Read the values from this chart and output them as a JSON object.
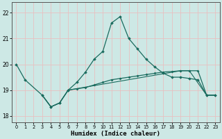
{
  "xlabel": "Humidex (Indice chaleur)",
  "x": [
    0,
    1,
    2,
    3,
    4,
    5,
    6,
    7,
    8,
    9,
    10,
    11,
    12,
    13,
    14,
    15,
    16,
    17,
    18,
    19,
    20,
    21,
    22,
    23
  ],
  "line1_x": [
    0,
    1,
    3,
    4,
    5,
    6,
    7,
    8,
    9,
    10,
    11,
    12,
    13,
    14,
    15,
    16,
    17,
    18,
    19,
    20,
    21,
    22,
    23
  ],
  "line1_y": [
    20.0,
    19.4,
    18.8,
    18.35,
    18.5,
    19.0,
    19.3,
    19.7,
    20.2,
    20.5,
    21.6,
    21.85,
    21.0,
    20.6,
    20.2,
    19.9,
    19.65,
    19.5,
    19.5,
    19.45,
    19.4,
    18.8,
    18.8
  ],
  "line2_x": [
    3,
    4,
    5,
    6,
    7,
    8,
    9,
    10,
    11,
    12,
    13,
    14,
    15,
    16,
    17,
    18,
    19,
    20,
    21,
    22,
    23
  ],
  "line2_y": [
    18.8,
    18.35,
    18.5,
    19.0,
    19.05,
    19.1,
    19.2,
    19.3,
    19.4,
    19.45,
    19.5,
    19.55,
    19.6,
    19.65,
    19.7,
    19.72,
    19.75,
    19.75,
    19.75,
    18.8,
    18.8
  ],
  "line3_x": [
    3,
    4,
    5,
    6,
    19,
    20,
    22,
    23
  ],
  "line3_y": [
    18.8,
    18.35,
    18.5,
    19.0,
    19.75,
    19.75,
    18.8,
    18.8
  ],
  "bg_color": "#cde8e5",
  "line_color": "#1a6b5e",
  "grid_minor_color": "#e8c0c0",
  "grid_major_color": "#e8c0c0",
  "ylim_min": 17.75,
  "ylim_max": 22.4,
  "yticks": [
    18,
    19,
    20,
    21,
    22
  ],
  "xticks": [
    0,
    1,
    2,
    3,
    4,
    5,
    6,
    7,
    8,
    9,
    10,
    11,
    12,
    13,
    14,
    15,
    16,
    17,
    18,
    19,
    20,
    21,
    22,
    23
  ]
}
